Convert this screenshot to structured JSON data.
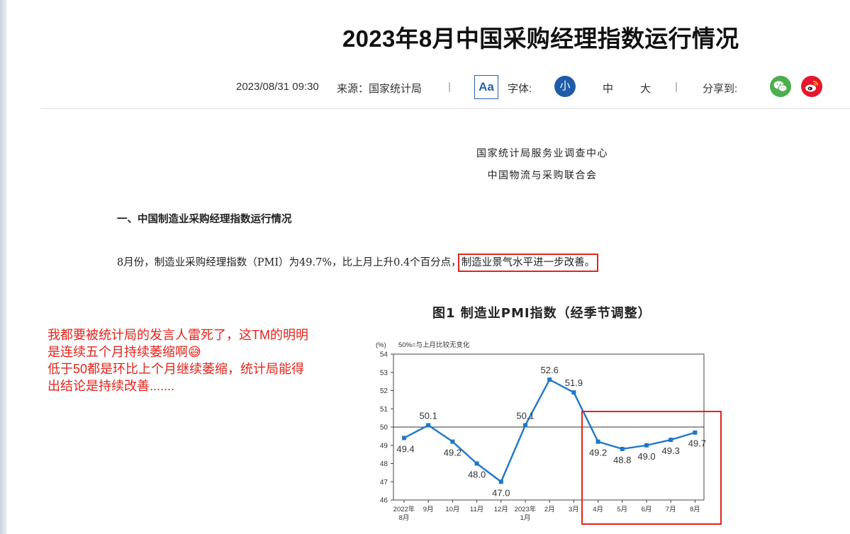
{
  "article": {
    "title": "2023年8月中国采购经理指数运行情况",
    "datetime": "2023/08/31 09:30",
    "source": "来源：国家统计局",
    "separator": "|",
    "font_button": "Aa",
    "font_label": "字体:",
    "font_sizes": [
      "小",
      "中",
      "大"
    ],
    "share_label": "分享到:",
    "share_icons": [
      "wechat-icon",
      "weibo-icon"
    ],
    "org_line1": "国家统计局服务业调查中心",
    "org_line2": "中国物流与采购联合会",
    "section_heading": "一、中国制造业采购经理指数运行情况",
    "paragraph_prefix": "8月份，制造业采购经理指数（PMI）为49.7%，比上月上升0.4个百分点，",
    "paragraph_highlight": "制造业景气水平进一步改善。"
  },
  "annotation": {
    "text": "我都要被统计局的发言人雷死了，这TM的明明\n是连续五个月持续萎缩啊😅\n低于50都是环比上个月继续萎缩，统计局能得\n出结论是持续改善......."
  },
  "colors": {
    "accent_blue": "#1f5ca8",
    "annotation_red": "#e0251c",
    "series_blue": "#1f77c8",
    "wechat_green": "#4cae4c",
    "weibo_red": "#e6162d"
  },
  "chart_data": {
    "type": "line",
    "title": "图1 制造业PMI指数（经季节调整）",
    "ylabel": "(%)",
    "legend_note": "50%=与上月比较无变化",
    "categories": [
      "2022年\n8月",
      "9月",
      "10月",
      "11月",
      "12月",
      "2023年\n1月",
      "2月",
      "3月",
      "4月",
      "5月",
      "6月",
      "7月",
      "8月"
    ],
    "series": [
      {
        "values": [
          49.4,
          50.1,
          49.2,
          48.0,
          47.0,
          50.1,
          52.6,
          51.9,
          49.2,
          48.8,
          49.0,
          49.3,
          49.7
        ]
      }
    ],
    "data_labels": [
      "49.4",
      "50.1",
      "49.2",
      "48.0",
      "47.0",
      "50.1",
      "52.6",
      "51.9",
      "49.2",
      "48.8",
      "49.0",
      "49.3",
      "49.7"
    ],
    "yticks": [
      46,
      47,
      48,
      49,
      50,
      51,
      52,
      53,
      54
    ],
    "ylim": [
      46,
      54
    ],
    "reference_line": 50,
    "grid": false
  }
}
